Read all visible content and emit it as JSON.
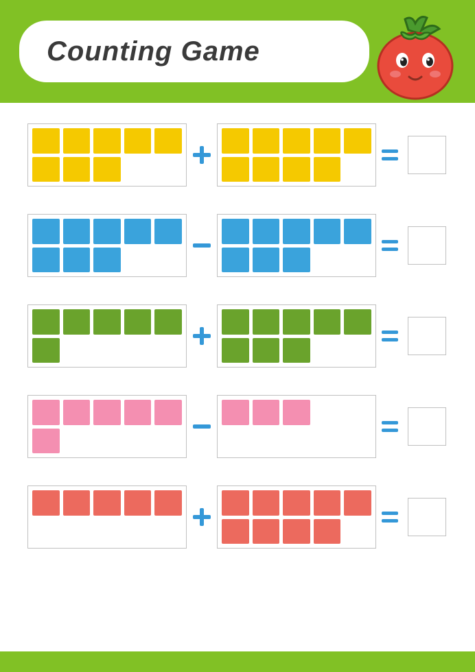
{
  "title": "Counting Game",
  "colors": {
    "accent": "#81c125",
    "operator": "#3498d8",
    "border": "#c0c0c0",
    "text": "#3a3a3a"
  },
  "rows": [
    {
      "color": "#f5c900",
      "left_count": 8,
      "op": "+",
      "right_count": 9
    },
    {
      "color": "#3aa3dc",
      "left_count": 8,
      "op": "-",
      "right_count": 8
    },
    {
      "color": "#6aa32c",
      "left_count": 6,
      "op": "+",
      "right_count": 8
    },
    {
      "color": "#f48fb1",
      "left_count": 6,
      "op": "-",
      "right_count": 3
    },
    {
      "color": "#ec6a5e",
      "left_count": 5,
      "op": "+",
      "right_count": 9
    }
  ]
}
